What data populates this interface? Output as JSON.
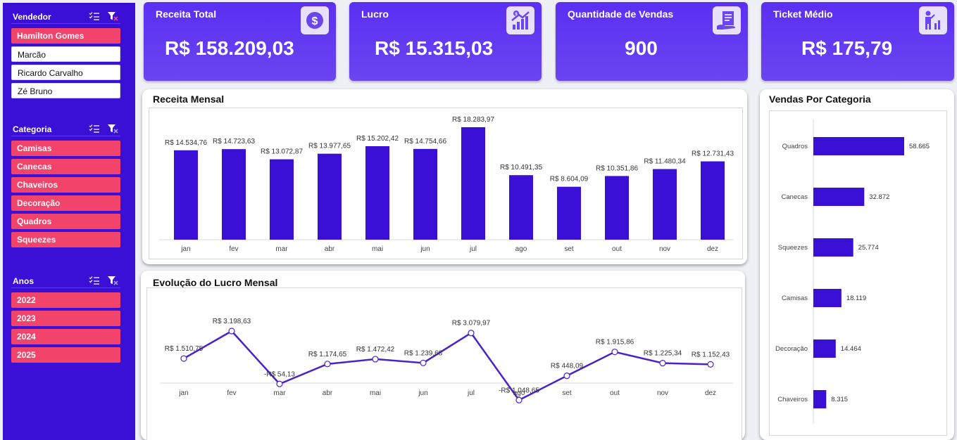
{
  "sidebar": {
    "vendedor": {
      "title": "Vendedor",
      "items": [
        {
          "label": "Hamilton Gomes",
          "selected": true
        },
        {
          "label": "Marcão",
          "selected": false
        },
        {
          "label": "Ricardo Carvalho",
          "selected": false
        },
        {
          "label": "Zé Bruno",
          "selected": false
        }
      ]
    },
    "categoria": {
      "title": "Categoria",
      "items": [
        {
          "label": "Camisas",
          "selected": true
        },
        {
          "label": "Canecas",
          "selected": true
        },
        {
          "label": "Chaveiros",
          "selected": true
        },
        {
          "label": "Decoração",
          "selected": true
        },
        {
          "label": "Quadros",
          "selected": true
        },
        {
          "label": "Squeezes",
          "selected": true
        }
      ]
    },
    "anos": {
      "title": "Anos",
      "items": [
        {
          "label": "2022",
          "selected": true
        },
        {
          "label": "2023",
          "selected": true
        },
        {
          "label": "2024",
          "selected": true
        },
        {
          "label": "2025",
          "selected": true
        }
      ]
    }
  },
  "kpis": [
    {
      "title": "Receita Total",
      "value": "R$ 158.209,03",
      "icon": "dollar-icon"
    },
    {
      "title": "Lucro",
      "value": "R$ 15.315,03",
      "icon": "growth-chart-icon"
    },
    {
      "title": "Quantidade de Vendas",
      "value": "900",
      "icon": "invoice-hand-icon"
    },
    {
      "title": "Ticket Médio",
      "value": "R$ 175,79",
      "icon": "presenter-chart-icon"
    }
  ],
  "colors": {
    "accent": "#3a0fd6",
    "bar": "#3a0fd6",
    "chip_selected": "#f2446b",
    "line": "#4b22c8"
  },
  "chart_data": [
    {
      "type": "bar",
      "title": "Receita Mensal",
      "categories": [
        "jan",
        "fev",
        "mar",
        "abr",
        "mai",
        "jun",
        "jul",
        "ago",
        "set",
        "out",
        "nov",
        "dez"
      ],
      "values": [
        14534.76,
        14723.63,
        13072.87,
        13977.65,
        15202.42,
        14754.66,
        18283.97,
        10491.35,
        8604.09,
        10351.86,
        11480.34,
        12731.43
      ],
      "labels": [
        "R$ 14.534,76",
        "R$ 14.723,63",
        "R$ 13.072,87",
        "R$ 13.977,65",
        "R$ 15.202,42",
        "R$ 14.754,66",
        "R$ 18.283,97",
        "R$ 10.491,35",
        "R$ 8.604,09",
        "R$ 10.351,86",
        "R$ 11.480,34",
        "R$ 12.731,43"
      ],
      "ylim": [
        0,
        18283.97
      ]
    },
    {
      "type": "line",
      "title": "Evolução do Lucro Mensal",
      "categories": [
        "jan",
        "fev",
        "mar",
        "abr",
        "mai",
        "jun",
        "jul",
        "ago",
        "set",
        "out",
        "nov",
        "dez"
      ],
      "values": [
        1510.75,
        3198.63,
        -54.13,
        1174.65,
        1472.42,
        1239.68,
        3079.97,
        -1048.65,
        448.09,
        1915.86,
        1225.34,
        1152.43
      ],
      "labels": [
        "R$ 1.510,75",
        "R$ 3.198,63",
        "-R$ 54,13",
        "R$ 1.174,65",
        "R$ 1.472,42",
        "R$ 1.239,68",
        "R$ 3.079,97",
        "-R$ 1.048,65",
        "R$ 448,09",
        "R$ 1.915,86",
        "R$ 1.225,34",
        "R$ 1.152,43"
      ]
    },
    {
      "type": "bar",
      "orientation": "horizontal",
      "title": "Vendas Por Categoria",
      "categories": [
        "Quadros",
        "Canecas",
        "Squeezes",
        "Camisas",
        "Decoração",
        "Chaveiros"
      ],
      "values": [
        58665,
        32872,
        25774,
        18119,
        14464,
        8315
      ],
      "labels": [
        "58.665",
        "32.872",
        "25.774",
        "18.119",
        "14.464",
        "8.315"
      ]
    }
  ]
}
